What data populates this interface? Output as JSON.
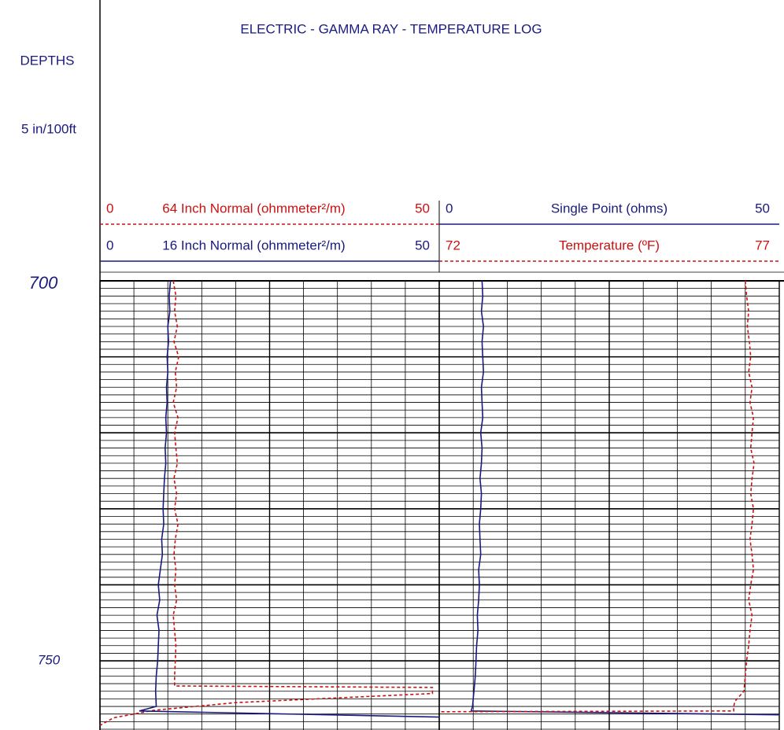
{
  "chart_data": {
    "type": "well-log",
    "title": "ELECTRIC - GAMMA RAY - TEMPERATURE LOG",
    "depth_label": "DEPTHS",
    "scale_label": "5 in/100ft",
    "ylim": [
      700,
      759.1
    ],
    "yticks": [
      700,
      750
    ],
    "tracks": [
      {
        "curves": [
          {
            "name": "64 Inch Normal (ohmmeter²/m)",
            "color": "#cc1111",
            "dashed": true,
            "xlim": [
              0,
              50
            ],
            "depths": [
              700,
              702,
              704,
              706,
              708,
              710,
              712,
              714,
              716,
              718,
              720,
              722,
              724,
              726,
              728,
              730,
              732,
              734,
              736,
              738,
              740,
              742,
              744,
              746,
              748,
              750,
              752,
              753.3,
              753.5,
              754.3,
              755.5,
              756.5,
              757.5,
              758.5
            ],
            "values": [
              10.8,
              11.2,
              11.0,
              11.4,
              10.9,
              11.6,
              11.1,
              11.3,
              10.8,
              11.5,
              11.0,
              11.2,
              11.4,
              10.9,
              11.3,
              11.0,
              11.5,
              11.1,
              10.9,
              11.2,
              11.0,
              11.3,
              10.8,
              11.0,
              11.2,
              11.1,
              11.0,
              11.0,
              49,
              49,
              20,
              8,
              2,
              0
            ]
          },
          {
            "name": "16 Inch Normal (ohmmeter²/m)",
            "color": "#1a1a80",
            "dashed": false,
            "xlim": [
              0,
              50
            ],
            "depths": [
              700,
              702,
              704,
              706,
              708,
              710,
              712,
              714,
              716,
              718,
              720,
              722,
              724,
              726,
              728,
              730,
              732,
              734,
              736,
              738,
              740,
              742,
              744,
              746,
              748,
              750,
              752,
              754,
              756,
              756.6,
              757.4
            ],
            "values": [
              10.4,
              10.2,
              10.3,
              10.0,
              10.1,
              9.9,
              10.0,
              9.8,
              9.9,
              9.7,
              9.8,
              9.6,
              9.7,
              9.5,
              9.4,
              9.3,
              9.4,
              9.1,
              9.2,
              8.9,
              8.6,
              8.8,
              8.4,
              8.7,
              8.6,
              8.5,
              8.3,
              8.2,
              8.3,
              5.8,
              50
            ]
          }
        ]
      },
      {
        "curves": [
          {
            "name": "Single Point (ohms)",
            "color": "#1a1a80",
            "dashed": false,
            "xlim": [
              0,
              50
            ],
            "depths": [
              700,
              702,
              704,
              706,
              708,
              710,
              712,
              714,
              716,
              718,
              720,
              722,
              724,
              726,
              728,
              730,
              732,
              734,
              736,
              738,
              740,
              742,
              744,
              746,
              748,
              750,
              752,
              754,
              756,
              756.6,
              757.1
            ],
            "values": [
              6.3,
              6.4,
              6.2,
              6.5,
              6.3,
              6.4,
              6.5,
              6.2,
              6.3,
              6.4,
              6.1,
              6.3,
              6.2,
              6.0,
              6.2,
              6.1,
              5.9,
              6.0,
              6.1,
              5.8,
              5.9,
              5.8,
              5.6,
              5.7,
              5.5,
              5.4,
              5.3,
              5.1,
              4.9,
              4.7,
              50
            ]
          },
          {
            "name": "Temperature (ºF)",
            "color": "#cc1111",
            "dashed": true,
            "xlim": [
              72,
              77
            ],
            "depths": [
              700,
              702,
              704,
              706,
              708,
              710,
              712,
              714,
              716,
              718,
              720,
              722,
              724,
              726,
              728,
              730,
              732,
              734,
              736,
              738,
              740,
              742,
              744,
              746,
              748,
              750,
              752,
              754,
              755.3,
              756,
              756.6,
              756.7
            ],
            "values": [
              76.5,
              76.52,
              76.55,
              76.53,
              76.56,
              76.58,
              76.55,
              76.6,
              76.57,
              76.62,
              76.6,
              76.58,
              76.63,
              76.6,
              76.58,
              76.62,
              76.6,
              76.57,
              76.6,
              76.62,
              76.58,
              76.55,
              76.6,
              76.57,
              76.55,
              76.52,
              76.5,
              76.48,
              76.35,
              76.33,
              76.33,
              72
            ]
          }
        ]
      }
    ]
  }
}
